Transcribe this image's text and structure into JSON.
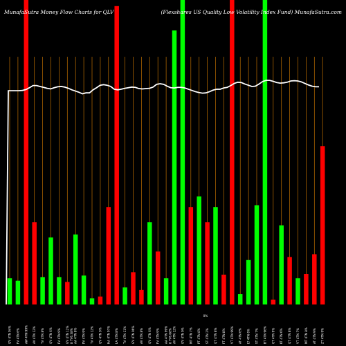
{
  "chart_data": {
    "type": "bar",
    "title_left": "MunafaSutra  Money Flow  Charts for QLV",
    "title_right": "(Flexshares US Quality Low Volatility Index Fund) MunafaSutra.com",
    "colors": {
      "background": "#000000",
      "up": "#00ff00",
      "down": "#ff0000",
      "grid": "#c07000",
      "line": "#ffffff"
    },
    "ylim": [
      0,
      100
    ],
    "bar_colors": [
      "up",
      "up",
      "down",
      "down",
      "up",
      "up",
      "up",
      "down",
      "up",
      "up",
      "up",
      "down",
      "down",
      "down",
      "up",
      "down",
      "down",
      "up",
      "down",
      "up",
      "up",
      "up",
      "down",
      "up",
      "down",
      "up",
      "down",
      "down",
      "up",
      "up",
      "up",
      "up",
      "down",
      "up",
      "down",
      "up",
      "down",
      "down",
      "down"
    ],
    "bar_values": [
      8.6,
      7.8,
      100,
      27,
      9,
      22,
      9,
      7.4,
      23,
      9.5,
      2,
      2.6,
      32,
      98,
      5.6,
      10.6,
      4.8,
      27,
      17.4,
      8.6,
      90,
      100,
      32,
      35.5,
      27,
      32,
      9.8,
      100,
      3.4,
      14.6,
      32.6,
      100,
      1.6,
      26,
      15.6,
      8.6,
      10,
      16.5,
      52
    ],
    "line_values": [
      70.2,
      70.2,
      70.2,
      70.2,
      70.3,
      70.6,
      71.2,
      71.9,
      71.9,
      71.6,
      71.3,
      71.0,
      70.8,
      71.2,
      71.5,
      71.6,
      71.4,
      71.0,
      70.5,
      70.1,
      69.7,
      69.2,
      69.5,
      69.5,
      70.5,
      71.2,
      72.0,
      72.2,
      72.0,
      71.6,
      70.7,
      70.5,
      70.7,
      71.0,
      71.2,
      71.4,
      71.3,
      70.9,
      70.8,
      70.9,
      71.0,
      71.4,
      72.3,
      72.5,
      72.3,
      71.7,
      71.2,
      71.1,
      71.3,
      71.3,
      71.1,
      70.7,
      70.3,
      69.9,
      69.6,
      69.4,
      69.5,
      69.9,
      70.4,
      70.7,
      70.7,
      71.1,
      71.3,
      71.9,
      72.6,
      73.0,
      72.9,
      72.4,
      72.0,
      71.6,
      71.7,
      72.4,
      73.2,
      73.6,
      73.6,
      73.3,
      72.9,
      72.7,
      72.8,
      73.0,
      73.4,
      73.5,
      73.4,
      73.1,
      72.6,
      72.1,
      71.7,
      71.5,
      71.5
    ],
    "x_labels": [
      "QV 4TN 94%",
      "FV 4TN 6%",
      "AW 4TN 99%",
      "AV 4TN 12%",
      "TV 4TN 8%",
      "QV 4TN 6%",
      "FV 4TN 9%",
      "GV 4TN 12%",
      "AA 4TN 8%",
      "PV 4TN 9%",
      "TV 4TN 12%",
      "QV 4TN 9%",
      "HA 4TN 97%",
      "LA 4TN 8%",
      "TV 4TN 11%",
      "GV 4TN 96%",
      "AV 4TN 8%",
      "QV 4TN 6%",
      "FV 4TN 9%",
      "AA 4TN 99%",
      "AV 4TN 12%",
      "GV 4TN 9%",
      "MT 4TN 7%",
      "PT 4TN 8%",
      "ST 4TN 2%",
      "QT 4TN 8%",
      "FT 4TN 8%",
      "VT 4TN 99%",
      "AT 4TN 6%",
      "LT 4TN 6%",
      "ST 4TN 7%",
      "BT 4TN 96%",
      "GT 4TN 9%",
      "KT 4TN 6%",
      "QT 4TN 8%",
      "VT 4TN 7%",
      "MT 4TN 8%",
      "AT 4TN 9%",
      "ZT 4TN 9%"
    ],
    "mid_labels": [
      "8 TV6.38%",
      "8 TV6.08%"
    ],
    "mid_labels_after": [
      7,
      19
    ],
    "mid_label_between": "0%",
    "gridlines": "vertical"
  }
}
